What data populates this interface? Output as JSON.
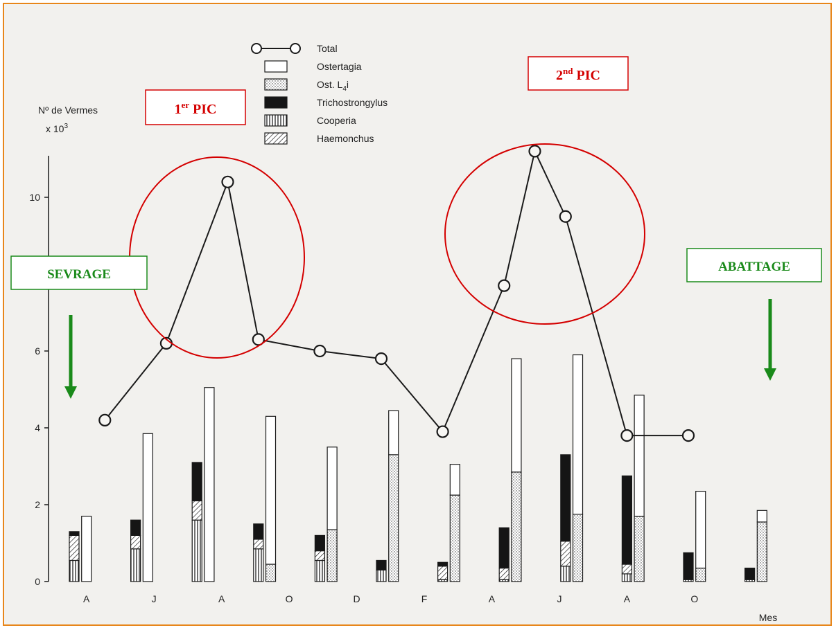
{
  "chart_data": {
    "type": "bar",
    "title": "",
    "ylabel_line1": "Nº de Vermes",
    "ylabel_line2": "x 10",
    "ylabel_exp": "3",
    "xlabel": "Mes",
    "y_ticks": [
      "0",
      "2",
      "4",
      "6",
      "10"
    ],
    "y_tick_values": [
      0,
      2,
      4,
      6,
      10
    ],
    "ylim": [
      0,
      11.5
    ],
    "categories": [
      "A",
      "J",
      "A",
      "O",
      "D",
      "F",
      "A",
      "J",
      "A",
      "O"
    ],
    "total": {
      "name": "Total",
      "x": [
        0.5,
        1.5,
        2.5,
        3.0,
        4.0,
        5.0,
        6.0,
        7.0,
        7.5,
        8.0,
        9.0,
        10.0
      ],
      "values": [
        4.2,
        6.2,
        10.4,
        6.3,
        6.0,
        5.8,
        3.9,
        7.7,
        11.2,
        9.5,
        3.8,
        3.8
      ]
    },
    "legend": [
      {
        "key": "total",
        "label": "Total"
      },
      {
        "key": "ostertagia",
        "label": "Ostertagia"
      },
      {
        "key": "l4i",
        "label": "Ost. L",
        "sub": "4",
        "suffix": "i"
      },
      {
        "key": "tricho",
        "label": "Trichostrongylus"
      },
      {
        "key": "cooperia",
        "label": "Cooperia"
      },
      {
        "key": "haemonchus",
        "label": "Haemonchus"
      }
    ],
    "bars": [
      {
        "x": 0.0,
        "segments": {
          "cooperia": 0.55,
          "haemonchus": 0.65,
          "tricho": 0.1
        }
      },
      {
        "x": 0.2,
        "segments": {
          "ostertagia": 1.7
        }
      },
      {
        "x": 1.0,
        "segments": {
          "cooperia": 0.85,
          "haemonchus": 0.35,
          "tricho": 0.4
        }
      },
      {
        "x": 1.2,
        "segments": {
          "ostertagia": 3.85
        }
      },
      {
        "x": 2.0,
        "segments": {
          "cooperia": 1.6,
          "haemonchus": 0.5,
          "tricho": 1.0
        }
      },
      {
        "x": 2.2,
        "segments": {
          "ostertagia": 5.05
        }
      },
      {
        "x": 3.0,
        "segments": {
          "cooperia": 0.85,
          "haemonchus": 0.25,
          "tricho": 0.4
        }
      },
      {
        "x": 3.2,
        "segments": {
          "l4i": 0.45,
          "ostertagia": 3.85
        }
      },
      {
        "x": 4.0,
        "segments": {
          "cooperia": 0.55,
          "haemonchus": 0.25,
          "tricho": 0.4
        }
      },
      {
        "x": 4.2,
        "segments": {
          "l4i": 1.35,
          "ostertagia": 2.15
        }
      },
      {
        "x": 5.0,
        "segments": {
          "cooperia": 0.3,
          "tricho": 0.25
        }
      },
      {
        "x": 5.2,
        "segments": {
          "l4i": 3.3,
          "ostertagia": 1.15
        }
      },
      {
        "x": 6.0,
        "segments": {
          "cooperia": 0.05,
          "haemonchus": 0.35,
          "tricho": 0.1
        }
      },
      {
        "x": 6.2,
        "segments": {
          "l4i": 2.25,
          "ostertagia": 0.8
        }
      },
      {
        "x": 7.0,
        "segments": {
          "cooperia": 0.05,
          "haemonchus": 0.3,
          "tricho": 1.05
        }
      },
      {
        "x": 7.2,
        "segments": {
          "l4i": 2.85,
          "ostertagia": 2.95
        }
      },
      {
        "x": 8.0,
        "segments": {
          "cooperia": 0.4,
          "haemonchus": 0.65,
          "tricho": 2.25
        }
      },
      {
        "x": 8.2,
        "segments": {
          "l4i": 1.75,
          "ostertagia": 4.15
        }
      },
      {
        "x": 9.0,
        "segments": {
          "cooperia": 0.2,
          "haemonchus": 0.25,
          "tricho": 2.3
        }
      },
      {
        "x": 9.2,
        "segments": {
          "l4i": 1.7,
          "ostertagia": 3.15
        }
      },
      {
        "x": 10.0,
        "segments": {
          "cooperia": 0.05,
          "tricho": 0.7
        }
      },
      {
        "x": 10.2,
        "segments": {
          "l4i": 0.35,
          "ostertagia": 2.0
        }
      },
      {
        "x": 11.0,
        "segments": {
          "cooperia": 0.05,
          "tricho": 0.3
        }
      },
      {
        "x": 11.2,
        "segments": {
          "l4i": 1.55,
          "ostertagia": 0.3
        }
      }
    ]
  },
  "annotations": {
    "pic1": {
      "main": "1",
      "sup": "er",
      "rest": " PIC"
    },
    "pic2": {
      "main": "2",
      "sup": "nd",
      "rest": " PIC"
    },
    "sevrage": "SEVRAGE",
    "abattage": "ABATTAGE"
  },
  "colors": {
    "red": "#d40000",
    "green": "#1a8a1a",
    "ink": "#1a1a1a",
    "frame": "#e8861a"
  }
}
